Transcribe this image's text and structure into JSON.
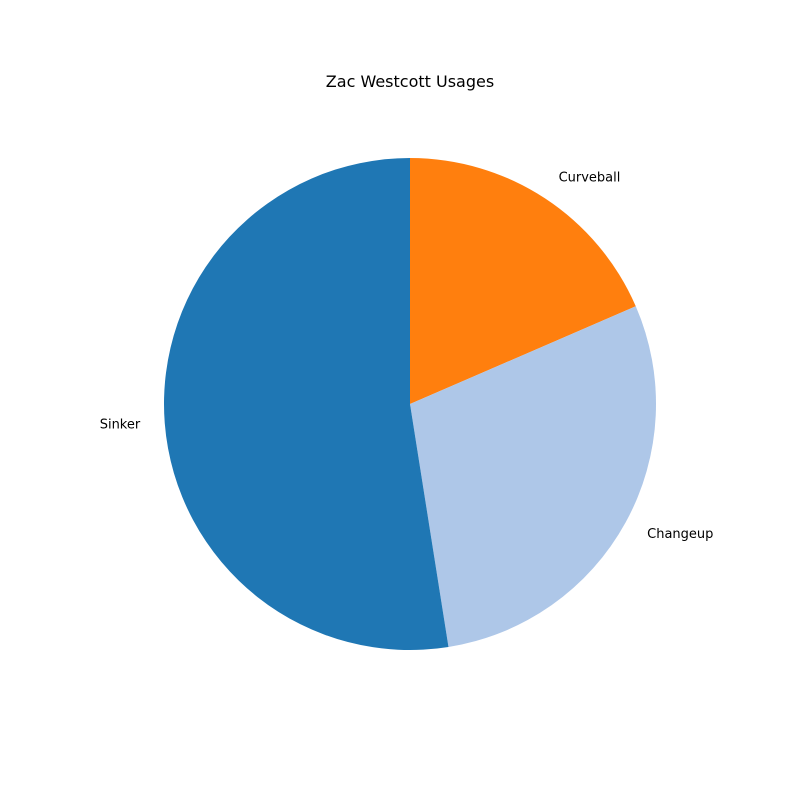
{
  "chart_data": {
    "type": "pie",
    "title": "Zac Westcott Usages",
    "start_angle_deg": 90,
    "direction": "clockwise",
    "slices": [
      {
        "label": "Curveball",
        "value": 18.5,
        "color": "#ff7f0e"
      },
      {
        "label": "Changeup",
        "value": 29.0,
        "color": "#aec7e8"
      },
      {
        "label": "Sinker",
        "value": 52.5,
        "color": "#1f77b4"
      }
    ]
  }
}
